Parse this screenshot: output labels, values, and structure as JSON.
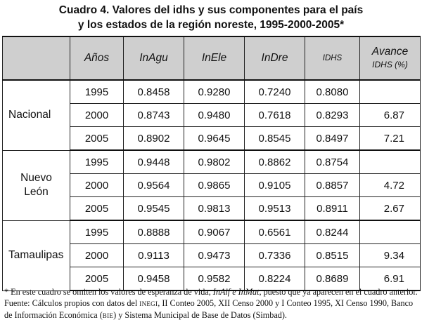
{
  "title": {
    "line1": "Cuadro 4. Valores del idhs y sus componentes para el país",
    "line2": "y los estados de la región noreste, 1995-2000-2005*"
  },
  "table": {
    "headers": {
      "region": "",
      "anios": "Años",
      "inagu": "InAgu",
      "inele": "InEle",
      "indre": "InDre",
      "idhs": "IDHS",
      "avance_line1": "Avance",
      "avance_line2": "IDHS (%)"
    },
    "groups": [
      {
        "region_line1": "Nacional",
        "region_line2": "",
        "rows": [
          {
            "anio": "1995",
            "inagu": "0.8458",
            "inele": "0.9280",
            "indre": "0.7240",
            "idhs": "0.8080",
            "avance": ""
          },
          {
            "anio": "2000",
            "inagu": "0.8743",
            "inele": "0.9480",
            "indre": "0.7618",
            "idhs": "0.8293",
            "avance": "6.87"
          },
          {
            "anio": "2005",
            "inagu": "0.8902",
            "inele": "0.9645",
            "indre": "0.8545",
            "idhs": "0.8497",
            "avance": "7.21"
          }
        ]
      },
      {
        "region_line1": "Nuevo",
        "region_line2": "León",
        "rows": [
          {
            "anio": "1995",
            "inagu": "0.9448",
            "inele": "0.9802",
            "indre": "0.8862",
            "idhs": "0.8754",
            "avance": ""
          },
          {
            "anio": "2000",
            "inagu": "0.9564",
            "inele": "0.9865",
            "indre": "0.9105",
            "idhs": "0.8857",
            "avance": "4.72"
          },
          {
            "anio": "2005",
            "inagu": "0.9545",
            "inele": "0.9813",
            "indre": "0.9513",
            "idhs": "0.8911",
            "avance": "2.67"
          }
        ]
      },
      {
        "region_line1": "Tamaulipas",
        "region_line2": "",
        "rows": [
          {
            "anio": "1995",
            "inagu": "0.8888",
            "inele": "0.9067",
            "indre": "0.6561",
            "idhs": "0.8244",
            "avance": ""
          },
          {
            "anio": "2000",
            "inagu": "0.9113",
            "inele": "0.9473",
            "indre": "0.7336",
            "idhs": "0.8515",
            "avance": "9.34"
          },
          {
            "anio": "2005",
            "inagu": "0.9458",
            "inele": "0.9582",
            "indre": "0.8224",
            "idhs": "0.8689",
            "avance": "6.91"
          }
        ]
      }
    ]
  },
  "footnote": {
    "note_a": "* En este cuadro se omiten los valores de esperanza de vida, ",
    "note_italic": "InAlf e InMat,",
    "note_b": " puesto que ya aparecen en el cuadro anterior.",
    "source_a": "Fuente: Cálculos propios con datos del ",
    "source_inegi": "INEGI",
    "source_b": ", II Conteo 2005, XII Censo 2000 y I Conteo 1995, XI Censo 1990, Banco de Información Económica (",
    "source_bie": "BIE",
    "source_c": ") y Sistema Municipal de Base de Datos (Simbad)."
  },
  "colors": {
    "header_bg": "#cfcfcf",
    "border": "#222222"
  }
}
